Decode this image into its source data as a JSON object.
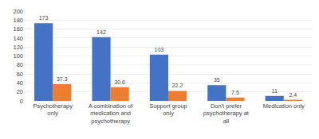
{
  "chart_data": {
    "type": "bar",
    "categories": [
      "Psychotherapy\nonly",
      "A combination of\nmedication and\npsychotherapy",
      "Support group\nonly",
      "Don't prefer\npsychotherapy at\nall",
      "Medication only"
    ],
    "series": [
      {
        "color": "#4472C4",
        "values": [
          173,
          142,
          103,
          35,
          11
        ]
      },
      {
        "color": "#ED7D31",
        "values": [
          37.3,
          30.6,
          22.2,
          7.5,
          2.4
        ]
      }
    ],
    "ylim": [
      0,
      200
    ],
    "yticks": [
      0,
      20,
      40,
      60,
      80,
      100,
      120,
      140,
      160,
      180,
      200
    ],
    "grid": true,
    "data_labels": true
  }
}
